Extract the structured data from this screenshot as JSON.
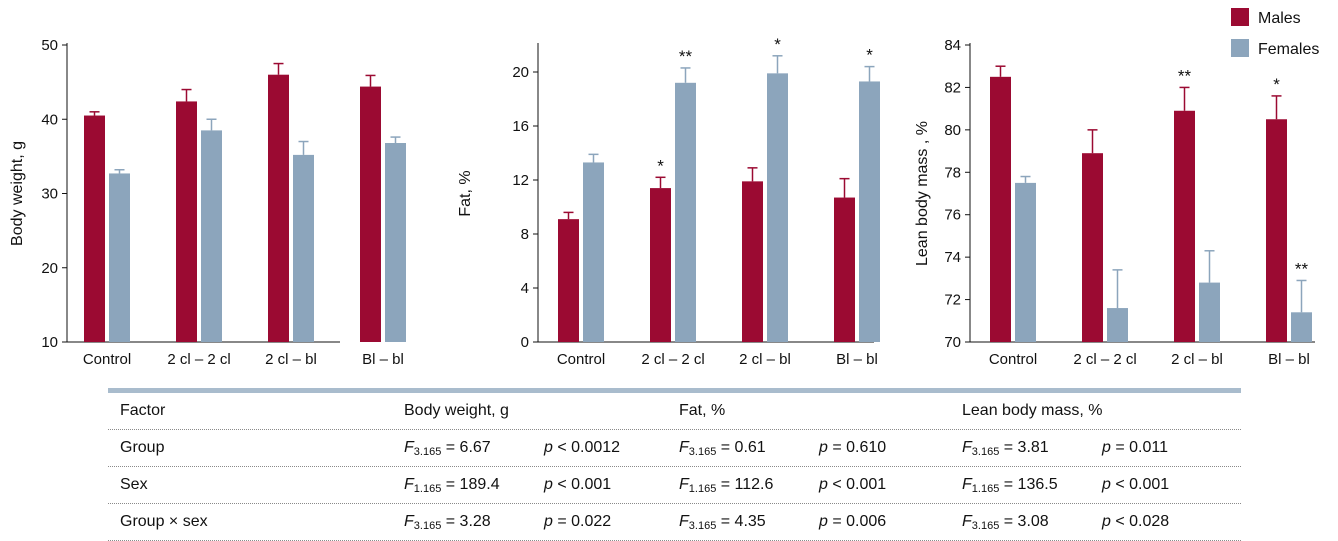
{
  "legend": {
    "items": [
      {
        "label": "Males",
        "color": "#9b0a32"
      },
      {
        "label": "Females",
        "color": "#8ca5bc"
      }
    ]
  },
  "chart_data": [
    {
      "type": "bar",
      "ylabel": "Body weight, g",
      "ylim": [
        10,
        50
      ],
      "yticks": [
        10,
        20,
        30,
        40,
        50
      ],
      "categories": [
        "Control",
        "2 cl – 2 cl",
        "2 cl – bl",
        "Bl – bl"
      ],
      "series": [
        {
          "name": "Males",
          "values": [
            40.5,
            42.4,
            46.0,
            44.4
          ],
          "errors": [
            0.5,
            1.6,
            1.5,
            1.5
          ],
          "significance": [
            "",
            "",
            "",
            ""
          ]
        },
        {
          "name": "Females",
          "values": [
            32.7,
            38.5,
            35.2,
            36.8
          ],
          "errors": [
            0.5,
            1.5,
            1.8,
            0.8
          ],
          "significance": [
            "",
            "",
            "",
            ""
          ]
        }
      ]
    },
    {
      "type": "bar",
      "ylabel": "Fat, %",
      "ylim": [
        0,
        22
      ],
      "yticks": [
        0,
        4,
        8,
        12,
        16,
        20
      ],
      "categories": [
        "Control",
        "2 cl – 2 cl",
        "2 cl – bl",
        "Bl – bl"
      ],
      "series": [
        {
          "name": "Males",
          "values": [
            9.1,
            11.4,
            11.9,
            10.7
          ],
          "errors": [
            0.5,
            0.8,
            1.0,
            1.4
          ],
          "significance": [
            "",
            "*",
            "",
            ""
          ]
        },
        {
          "name": "Females",
          "values": [
            13.3,
            19.2,
            19.9,
            19.3
          ],
          "errors": [
            0.6,
            1.1,
            1.3,
            1.1
          ],
          "significance": [
            "",
            "**",
            "*",
            "*"
          ]
        }
      ]
    },
    {
      "type": "bar",
      "ylabel": "Lean body mass , %",
      "ylim": [
        70,
        84
      ],
      "yticks": [
        70,
        72,
        74,
        76,
        78,
        80,
        82,
        84
      ],
      "categories": [
        "Control",
        "2 cl – 2 cl",
        "2 cl – bl",
        "Bl – bl"
      ],
      "series": [
        {
          "name": "Males",
          "values": [
            82.5,
            78.9,
            80.9,
            80.5
          ],
          "errors": [
            0.5,
            1.1,
            1.1,
            1.1
          ],
          "significance": [
            "",
            "",
            "**",
            "*"
          ]
        },
        {
          "name": "Females",
          "values": [
            77.5,
            71.6,
            72.8,
            71.4
          ],
          "errors": [
            0.3,
            1.8,
            1.5,
            1.5
          ],
          "significance": [
            "",
            "",
            "",
            "**"
          ]
        }
      ]
    }
  ],
  "table": {
    "headers": [
      "Factor",
      "Body weight, g",
      "Fat, %",
      "Lean body mass, %"
    ],
    "rows": [
      {
        "factor": "Group",
        "cells": [
          {
            "f_sub": "3.165",
            "f_val": "= 6.67",
            "p_val": "< 0.0012"
          },
          {
            "f_sub": "3.165",
            "f_val": "= 0.61",
            "p_val": "= 0.610"
          },
          {
            "f_sub": "3.165",
            "f_val": "= 3.81",
            "p_val": "= 0.011"
          }
        ]
      },
      {
        "factor": "Sex",
        "cells": [
          {
            "f_sub": "1.165",
            "f_val": "= 189.4",
            "p_val": "< 0.001"
          },
          {
            "f_sub": "1.165",
            "f_val": "= 112.6",
            "p_val": "< 0.001"
          },
          {
            "f_sub": "1.165",
            "f_val": "= 136.5",
            "p_val": "< 0.001"
          }
        ]
      },
      {
        "factor": "Group × sex",
        "cells": [
          {
            "f_sub": "3.165",
            "f_val": "= 3.28",
            "p_val": "= 0.022"
          },
          {
            "f_sub": "3.165",
            "f_val": "= 4.35",
            "p_val": "= 0.006"
          },
          {
            "f_sub": "3.165",
            "f_val": "= 3.08",
            "p_val": "< 0.028"
          }
        ]
      }
    ]
  }
}
